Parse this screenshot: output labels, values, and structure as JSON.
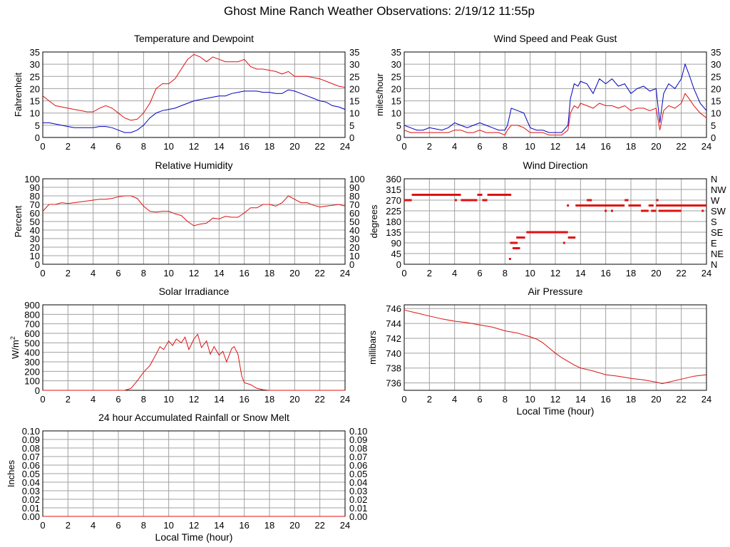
{
  "page_title": "Ghost Mine Ranch Weather Observations: 2/19/12 11:55p",
  "colors": {
    "red": "#e01010",
    "blue": "#0000c0",
    "grid": "#a0a0a0",
    "axis": "#000000"
  },
  "chart_data": [
    {
      "id": "temperature",
      "type": "line",
      "title": "Temperature and Dewpoint",
      "ylabel": "Fahrenheit",
      "xlabel": "",
      "xlim": [
        0,
        24
      ],
      "ylim": [
        0,
        35
      ],
      "xticks": [
        "0",
        "2",
        "4",
        "6",
        "8",
        "10",
        "12",
        "14",
        "16",
        "18",
        "20",
        "22",
        "24"
      ],
      "yticks": [
        "0",
        "5",
        "10",
        "15",
        "20",
        "25",
        "30",
        "35"
      ],
      "right_yticks": [
        "0",
        "5",
        "10",
        "15",
        "20",
        "25",
        "30",
        "35"
      ],
      "series": [
        {
          "color": "red",
          "x": [
            0,
            0.5,
            1,
            1.5,
            2,
            2.5,
            3,
            3.5,
            4,
            4.5,
            5,
            5.5,
            6,
            6.5,
            7,
            7.5,
            8,
            8.5,
            9,
            9.5,
            10,
            10.5,
            11,
            11.5,
            12,
            12.5,
            13,
            13.5,
            14,
            14.5,
            15,
            15.5,
            16,
            16.5,
            17,
            17.5,
            18,
            18.5,
            19,
            19.5,
            20,
            20.5,
            21,
            21.5,
            22,
            22.5,
            23,
            23.5,
            24
          ],
          "y": [
            17,
            15,
            13,
            12.5,
            12,
            11.5,
            11,
            10.5,
            10.5,
            12,
            13,
            12,
            10,
            8,
            7,
            7.5,
            10,
            14,
            20,
            22,
            22,
            24,
            28,
            32,
            34,
            33,
            31,
            33,
            32,
            31,
            31,
            31,
            32,
            29,
            28,
            28,
            27.5,
            27,
            26,
            27,
            25,
            25,
            25,
            24.5,
            24,
            23,
            22,
            21,
            20.5
          ]
        },
        {
          "color": "blue",
          "x": [
            0,
            0.5,
            1,
            1.5,
            2,
            2.5,
            3,
            3.5,
            4,
            4.5,
            5,
            5.5,
            6,
            6.5,
            7,
            7.5,
            8,
            8.5,
            9,
            9.5,
            10,
            10.5,
            11,
            11.5,
            12,
            12.5,
            13,
            13.5,
            14,
            14.5,
            15,
            15.5,
            16,
            16.5,
            17,
            17.5,
            18,
            18.5,
            19,
            19.5,
            20,
            20.5,
            21,
            21.5,
            22,
            22.5,
            23,
            23.5,
            24
          ],
          "y": [
            6,
            6,
            5.5,
            5,
            4.5,
            4,
            4,
            4,
            4,
            4.5,
            4.5,
            4,
            3,
            2,
            2,
            3,
            5,
            8,
            10,
            11,
            11.5,
            12,
            13,
            14,
            15,
            15.5,
            16,
            16.5,
            17,
            17,
            18,
            18.5,
            19,
            19,
            19,
            18.5,
            18.5,
            18,
            18,
            19.5,
            19,
            18,
            17,
            16,
            15,
            14.5,
            13,
            12.5,
            11.5
          ]
        }
      ]
    },
    {
      "id": "wind-speed",
      "type": "line",
      "title": "Wind Speed and Peak Gust",
      "ylabel": "miles/hour",
      "xlabel": "",
      "xlim": [
        0,
        24
      ],
      "ylim": [
        0,
        35
      ],
      "xticks": [
        "0",
        "2",
        "4",
        "6",
        "8",
        "10",
        "12",
        "14",
        "16",
        "18",
        "20",
        "22",
        "24"
      ],
      "yticks": [
        "0",
        "5",
        "10",
        "15",
        "20",
        "25",
        "30",
        "35"
      ],
      "right_yticks": [
        "0",
        "5",
        "10",
        "15",
        "20",
        "25",
        "30",
        "35"
      ],
      "series": [
        {
          "color": "blue",
          "x": [
            0,
            0.5,
            1,
            1.5,
            2,
            2.5,
            3,
            3.5,
            4,
            4.5,
            5,
            5.5,
            6,
            6.5,
            7,
            7.5,
            8,
            8.2,
            8.5,
            9,
            9.5,
            10,
            10.5,
            11,
            11.5,
            12,
            12.5,
            13,
            13.2,
            13.5,
            13.8,
            14,
            14.5,
            15,
            15.5,
            16,
            16.5,
            17,
            17.5,
            18,
            18.5,
            19,
            19.5,
            20,
            20.3,
            20.6,
            21,
            21.5,
            22,
            22.3,
            22.6,
            23,
            23.5,
            24
          ],
          "y": [
            5,
            4,
            3,
            3,
            4,
            3.5,
            3,
            4,
            6,
            5,
            4,
            5,
            6,
            5,
            4,
            3,
            3,
            5,
            12,
            11,
            10,
            4,
            3,
            3,
            2,
            2,
            2,
            5,
            16,
            22,
            21,
            23,
            22,
            18,
            24,
            22,
            24,
            21,
            22,
            18,
            20,
            21,
            19,
            20,
            6,
            18,
            22,
            20,
            24,
            30,
            26,
            20,
            14,
            11
          ]
        },
        {
          "color": "red",
          "x": [
            0,
            0.5,
            1,
            1.5,
            2,
            2.5,
            3,
            3.5,
            4,
            4.5,
            5,
            5.5,
            6,
            6.5,
            7,
            7.5,
            8,
            8.2,
            8.5,
            9,
            9.5,
            10,
            10.5,
            11,
            11.5,
            12,
            12.5,
            13,
            13.2,
            13.5,
            13.8,
            14,
            14.5,
            15,
            15.5,
            16,
            16.5,
            17,
            17.5,
            18,
            18.5,
            19,
            19.5,
            20,
            20.3,
            20.6,
            21,
            21.5,
            22,
            22.3,
            22.6,
            23,
            23.5,
            24
          ],
          "y": [
            3,
            2,
            2,
            2,
            2,
            2,
            2,
            2,
            3,
            3,
            2,
            2,
            3,
            2,
            2,
            2,
            1,
            3,
            5,
            5,
            4,
            2,
            2,
            2,
            1,
            1,
            1,
            3,
            10,
            13,
            12,
            14,
            13,
            12,
            14,
            13,
            13,
            12,
            13,
            11,
            12,
            12,
            11,
            12,
            3,
            11,
            13,
            12,
            14,
            18,
            16,
            13,
            10,
            8
          ]
        }
      ]
    },
    {
      "id": "humidity",
      "type": "line",
      "title": "Relative Humidity",
      "ylabel": "Percent",
      "xlabel": "",
      "xlim": [
        0,
        24
      ],
      "ylim": [
        0,
        100
      ],
      "xticks": [
        "0",
        "2",
        "4",
        "6",
        "8",
        "10",
        "12",
        "14",
        "16",
        "18",
        "20",
        "22",
        "24"
      ],
      "yticks": [
        "0",
        "10",
        "20",
        "30",
        "40",
        "50",
        "60",
        "70",
        "80",
        "90",
        "100"
      ],
      "right_yticks": [
        "0",
        "10",
        "20",
        "30",
        "40",
        "50",
        "60",
        "70",
        "80",
        "90",
        "100"
      ],
      "series": [
        {
          "color": "red",
          "x": [
            0,
            0.5,
            1,
            1.5,
            2,
            2.5,
            3,
            3.5,
            4,
            4.5,
            5,
            5.5,
            6,
            6.5,
            7,
            7.5,
            8,
            8.5,
            9,
            9.5,
            10,
            10.5,
            11,
            11.5,
            12,
            12.5,
            13,
            13.5,
            14,
            14.5,
            15,
            15.5,
            16,
            16.5,
            17,
            17.5,
            18,
            18.5,
            19,
            19.5,
            20,
            20.5,
            21,
            21.5,
            22,
            22.5,
            23,
            23.5,
            24
          ],
          "y": [
            62,
            70,
            70,
            72,
            71,
            72,
            73,
            74,
            75,
            76,
            76,
            77,
            79,
            80,
            80,
            77,
            68,
            62,
            61,
            62,
            62,
            59,
            57,
            50,
            45,
            47,
            48,
            54,
            53,
            56,
            55,
            55,
            60,
            66,
            66,
            70,
            70,
            68,
            72,
            80,
            76,
            72,
            72,
            69,
            67,
            68,
            69,
            70,
            68
          ]
        }
      ]
    },
    {
      "id": "wind-direction",
      "type": "scatter",
      "title": "Wind Direction",
      "ylabel": "degrees",
      "xlabel": "",
      "xlim": [
        0,
        24
      ],
      "ylim": [
        0,
        360
      ],
      "xticks": [
        "0",
        "2",
        "4",
        "6",
        "8",
        "10",
        "12",
        "14",
        "16",
        "18",
        "20",
        "22",
        "24"
      ],
      "yticks": [
        "0",
        "45",
        "90",
        "135",
        "180",
        "225",
        "270",
        "315",
        "360"
      ],
      "right_yticks": [
        "N",
        "NE",
        "E",
        "SE",
        "S",
        "SW",
        "W",
        "NW",
        "N"
      ],
      "segments": [
        {
          "x": [
            0,
            0.6
          ],
          "y": 270
        },
        {
          "x": [
            0.6,
            4.5
          ],
          "y": 292.5
        },
        {
          "x": [
            4.5,
            5.8
          ],
          "y": 270
        },
        {
          "x": [
            5.8,
            6.2
          ],
          "y": 292.5
        },
        {
          "x": [
            6.2,
            6.6
          ],
          "y": 270
        },
        {
          "x": [
            6.6,
            8.5
          ],
          "y": 292.5
        },
        {
          "x": [
            8.4,
            9.0
          ],
          "y": 90
        },
        {
          "x": [
            8.6,
            9.2
          ],
          "y": 67.5
        },
        {
          "x": [
            8.9,
            9.6
          ],
          "y": 112.5
        },
        {
          "x": [
            9.7,
            13.0
          ],
          "y": 135
        },
        {
          "x": [
            13.0,
            13.6
          ],
          "y": 112.5
        },
        {
          "x": [
            13.6,
            14.6
          ],
          "y": 247.5
        },
        {
          "x": [
            14.5,
            14.9
          ],
          "y": 270
        },
        {
          "x": [
            14.6,
            17.5
          ],
          "y": 247.5
        },
        {
          "x": [
            17.5,
            17.8
          ],
          "y": 270
        },
        {
          "x": [
            17.8,
            18.8
          ],
          "y": 247.5
        },
        {
          "x": [
            18.8,
            19.4
          ],
          "y": 225
        },
        {
          "x": [
            19.4,
            19.8
          ],
          "y": 247.5
        },
        {
          "x": [
            19.6,
            20.0
          ],
          "y": 225
        },
        {
          "x": [
            20.0,
            24.0
          ],
          "y": 247.5
        },
        {
          "x": [
            20.2,
            22.0
          ],
          "y": 225
        }
      ],
      "points": [
        {
          "x": 4.1,
          "y": 270
        },
        {
          "x": 8.4,
          "y": 22.5
        },
        {
          "x": 12.7,
          "y": 90
        },
        {
          "x": 13.0,
          "y": 247.5
        },
        {
          "x": 16.0,
          "y": 225
        },
        {
          "x": 16.5,
          "y": 225
        },
        {
          "x": 20.1,
          "y": 270
        },
        {
          "x": 23.7,
          "y": 225
        }
      ]
    },
    {
      "id": "solar",
      "type": "line",
      "title": "Solar Irradiance",
      "ylabel": "W/m2",
      "xlabel": "",
      "xlim": [
        0,
        24
      ],
      "ylim": [
        0,
        900
      ],
      "xticks": [
        "0",
        "2",
        "4",
        "6",
        "8",
        "10",
        "12",
        "14",
        "16",
        "18",
        "20",
        "22",
        "24"
      ],
      "yticks": [
        "0",
        "100",
        "200",
        "300",
        "400",
        "500",
        "600",
        "700",
        "800",
        "900"
      ],
      "right_yticks": [],
      "series": [
        {
          "color": "red",
          "x": [
            0,
            6.5,
            7,
            7.5,
            8,
            8.5,
            9,
            9.3,
            9.6,
            10,
            10.3,
            10.6,
            11,
            11.3,
            11.6,
            12,
            12.3,
            12.6,
            13,
            13.3,
            13.6,
            14,
            14.3,
            14.6,
            15,
            15.2,
            15.5,
            15.8,
            16,
            16.5,
            17,
            17.5,
            18,
            24
          ],
          "y": [
            0,
            0,
            20,
            100,
            190,
            260,
            380,
            460,
            430,
            520,
            470,
            540,
            500,
            560,
            430,
            540,
            590,
            450,
            520,
            380,
            460,
            370,
            410,
            300,
            440,
            460,
            380,
            150,
            80,
            60,
            20,
            5,
            0,
            0
          ]
        }
      ]
    },
    {
      "id": "pressure",
      "type": "line",
      "title": "Air Pressure",
      "ylabel": "millibars",
      "xlabel": "Local Time (hour)",
      "xlim": [
        0,
        24
      ],
      "ylim": [
        735,
        746.5
      ],
      "xticks": [
        "0",
        "2",
        "4",
        "6",
        "8",
        "10",
        "12",
        "14",
        "16",
        "18",
        "20",
        "22",
        "24"
      ],
      "yticks": [
        "736",
        "738",
        "740",
        "742",
        "744",
        "746"
      ],
      "ytick_values": [
        736,
        738,
        740,
        742,
        744,
        746
      ],
      "right_yticks": [],
      "series": [
        {
          "color": "red",
          "x": [
            0,
            1,
            2,
            3,
            4,
            5,
            6,
            7,
            8,
            9,
            10,
            10.5,
            11,
            11.5,
            12,
            12.5,
            13,
            13.5,
            14,
            15,
            16,
            17,
            18,
            19,
            20,
            20.5,
            21,
            22,
            23,
            24
          ],
          "y": [
            745.8,
            745.4,
            745.0,
            744.6,
            744.3,
            744.1,
            743.8,
            743.5,
            743.0,
            742.7,
            742.2,
            741.9,
            741.4,
            740.7,
            740.0,
            739.4,
            738.9,
            738.4,
            738.0,
            737.6,
            737.1,
            736.9,
            736.6,
            736.4,
            736.1,
            735.9,
            736.1,
            736.5,
            736.9,
            737.1
          ]
        }
      ]
    },
    {
      "id": "rainfall",
      "type": "line",
      "title": "24 hour Accumulated Rainfall or Snow Melt",
      "ylabel": "Inches",
      "xlabel": "Local Time (hour)",
      "xlim": [
        0,
        24
      ],
      "ylim": [
        0,
        0.1
      ],
      "xticks": [
        "0",
        "2",
        "4",
        "6",
        "8",
        "10",
        "12",
        "14",
        "16",
        "18",
        "20",
        "22",
        "24"
      ],
      "yticks": [
        "0.00",
        "0.01",
        "0.02",
        "0.03",
        "0.04",
        "0.05",
        "0.06",
        "0.07",
        "0.08",
        "0.09",
        "0.10"
      ],
      "right_yticks": [
        "0.00",
        "0.01",
        "0.02",
        "0.03",
        "0.04",
        "0.05",
        "0.06",
        "0.07",
        "0.08",
        "0.09",
        "0.10"
      ],
      "series": [
        {
          "color": "red",
          "x": [
            0,
            24
          ],
          "y": [
            0,
            0
          ]
        }
      ]
    }
  ]
}
